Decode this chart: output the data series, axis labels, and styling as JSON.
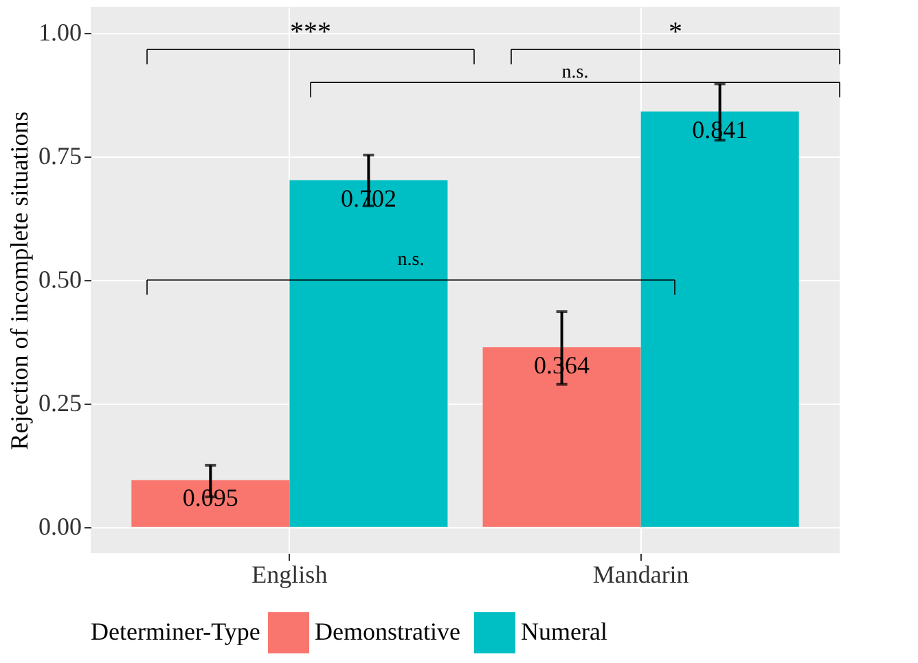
{
  "chart_data": {
    "type": "bar",
    "ylabel": "Rejection of incomplete situations",
    "legend_title": "Determiner-Type",
    "categories": [
      "English",
      "Mandarin"
    ],
    "series": [
      {
        "name": "Demonstrative",
        "color": "#f8766d",
        "values": [
          0.095,
          0.364
        ],
        "errors": [
          [
            0.061,
            0.125
          ],
          [
            0.289,
            0.436
          ]
        ]
      },
      {
        "name": "Numeral",
        "color": "#00bfc4",
        "values": [
          0.702,
          0.841
        ],
        "errors": [
          [
            0.65,
            0.753
          ],
          [
            0.783,
            0.897
          ]
        ]
      }
    ],
    "ylim": [
      -0.053,
      1.053
    ],
    "yticks": [
      {
        "value": 0,
        "label": "0.00"
      },
      {
        "value": 0.25,
        "label": "0.25"
      },
      {
        "value": 0.5,
        "label": "0.50"
      },
      {
        "value": 0.75,
        "label": "0.75"
      },
      {
        "value": 1,
        "label": "1.00"
      }
    ],
    "annotations": [
      "***",
      "*",
      "n.s.",
      "n.s."
    ],
    "data_labels": true,
    "grid": true,
    "legend": "bottom"
  }
}
